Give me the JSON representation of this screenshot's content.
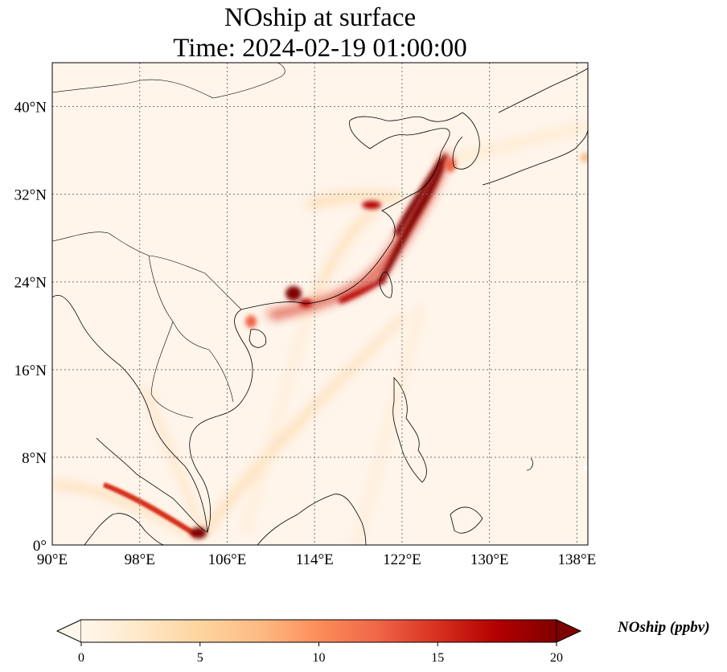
{
  "title_line1": "NOship at surface",
  "title_line2": "Time: 2024-02-19 01:00:00",
  "map": {
    "lon_range": [
      90,
      139
    ],
    "lat_range": [
      0,
      44
    ],
    "lon_ticks": [
      {
        "value": 90,
        "label": "90°E"
      },
      {
        "value": 98,
        "label": "98°E"
      },
      {
        "value": 106,
        "label": "106°E"
      },
      {
        "value": 114,
        "label": "114°E"
      },
      {
        "value": 122,
        "label": "122°E"
      },
      {
        "value": 130,
        "label": "130°E"
      },
      {
        "value": 138,
        "label": "138°E"
      }
    ],
    "lat_ticks": [
      {
        "value": 0,
        "label": "0°"
      },
      {
        "value": 8,
        "label": "8°N"
      },
      {
        "value": 16,
        "label": "16°N"
      },
      {
        "value": 24,
        "label": "24°N"
      },
      {
        "value": 32,
        "label": "32°N"
      },
      {
        "value": 40,
        "label": "40°N"
      }
    ],
    "gridlines": true,
    "background_color": "#fff5eb"
  },
  "colorbar": {
    "label": "NOship (ppbv)",
    "min": 0,
    "max": 20,
    "ticks": [
      0,
      5,
      10,
      15,
      20
    ],
    "extend": "both",
    "colormap": "OrRd",
    "colors": [
      "#fff7ec",
      "#fee8c8",
      "#fdd49e",
      "#fdbb84",
      "#fc8d59",
      "#ef6548",
      "#d7301f",
      "#b30000",
      "#7f0000"
    ]
  }
}
